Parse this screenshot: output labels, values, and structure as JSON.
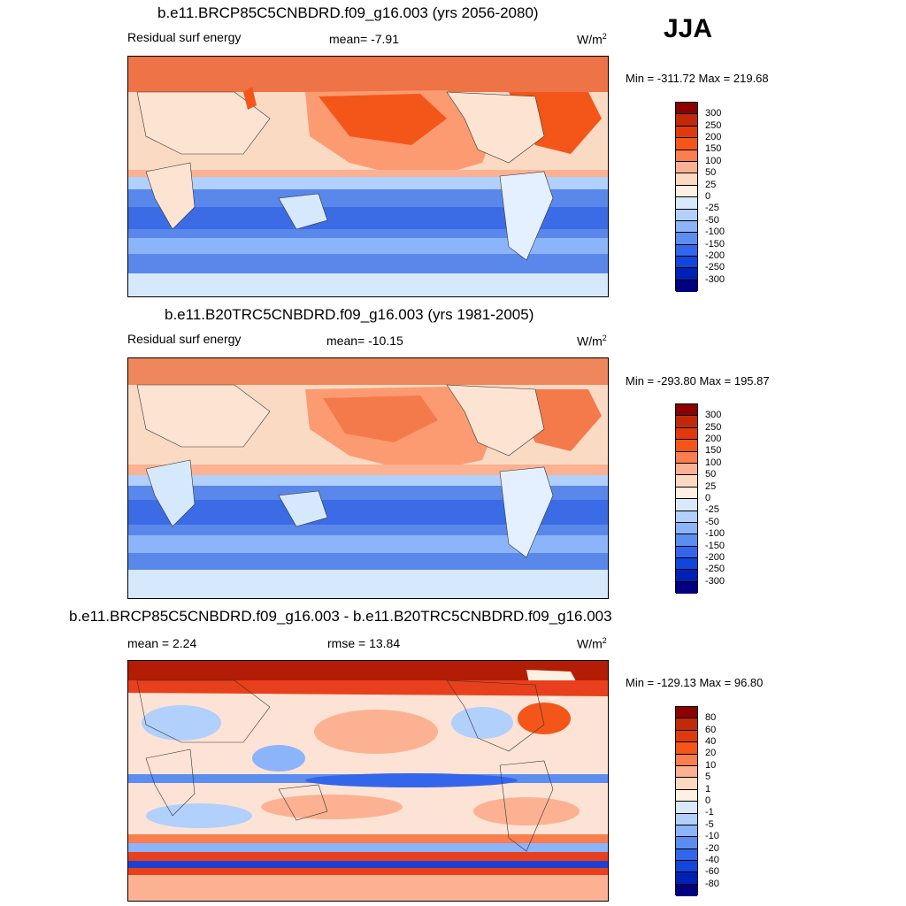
{
  "season": "JJA",
  "panels": [
    {
      "title": "b.e11.BRCP85C5CNBDRD.f09_g16.003 (yrs 2056-2080)",
      "left_label": "Residual surf energy",
      "center_label": "mean=  -7.91",
      "units": "W/m",
      "units_sup": "2",
      "minmax": "Min = -311.72 Max = 219.68",
      "colorbar": {
        "levels": [
          "300",
          "250",
          "200",
          "150",
          "100",
          "50",
          "25",
          "0",
          "-25",
          "-50",
          "-100",
          "-150",
          "-200",
          "-250",
          "-300"
        ],
        "colors": [
          "#8b0000",
          "#c02a08",
          "#e03a0c",
          "#f4561a",
          "#fc7e4e",
          "#fcb292",
          "#fdd9c2",
          "#fff0e2",
          "#d8e9fb",
          "#b1d0fb",
          "#8cb4fa",
          "#5c8ef2",
          "#3366ea",
          "#1046dc",
          "#0022b4",
          "#000080"
        ]
      }
    },
    {
      "title": "b.e11.B20TRC5CNBDRD.f09_g16.003 (yrs 1981-2005)",
      "left_label": "Residual surf energy",
      "center_label": "mean= -10.15",
      "units": "W/m",
      "units_sup": "2",
      "minmax": "Min = -293.80 Max = 195.87",
      "colorbar": {
        "levels": [
          "300",
          "250",
          "200",
          "150",
          "100",
          "50",
          "25",
          "0",
          "-25",
          "-50",
          "-100",
          "-150",
          "-200",
          "-250",
          "-300"
        ],
        "colors": [
          "#8b0000",
          "#c02a08",
          "#e03a0c",
          "#f4561a",
          "#fc7e4e",
          "#fcb292",
          "#fdd9c2",
          "#fff0e2",
          "#d8e9fb",
          "#b1d0fb",
          "#8cb4fa",
          "#5c8ef2",
          "#3366ea",
          "#1046dc",
          "#0022b4",
          "#000080"
        ]
      }
    },
    {
      "title": "b.e11.BRCP85C5CNBDRD.f09_g16.003 - b.e11.B20TRC5CNBDRD.f09_g16.003",
      "left_label": "mean =   2.24",
      "center_label": "rmse =  13.84",
      "units": "W/m",
      "units_sup": "2",
      "minmax": "Min = -129.13 Max =  96.80",
      "colorbar": {
        "levels": [
          "80",
          "60",
          "40",
          "20",
          "10",
          "5",
          "1",
          "0",
          "-1",
          "-5",
          "-10",
          "-20",
          "-40",
          "-60",
          "-80"
        ],
        "colors": [
          "#8b0000",
          "#c02a08",
          "#e03a0c",
          "#f4561a",
          "#fc7e4e",
          "#fcb292",
          "#fdd9c2",
          "#fff0e2",
          "#d8e9fb",
          "#b1d0fb",
          "#8cb4fa",
          "#5c8ef2",
          "#3366ea",
          "#1046dc",
          "#0022b4",
          "#000080"
        ]
      }
    }
  ],
  "colors": {
    "ocean_north": "#f0865c",
    "ocean_north_deep": "#ec6a38",
    "land_warm": "#fde4d2",
    "ocean_south": "#5a87ea",
    "ocean_south_deep": "#3c6be6",
    "antarctica": "#d6e8fb",
    "diff_background": "#fde3d5",
    "diff_arctic": "#b31d05",
    "diff_band_red": "#e8401c",
    "diff_band_blue": "#1c3fd4"
  }
}
